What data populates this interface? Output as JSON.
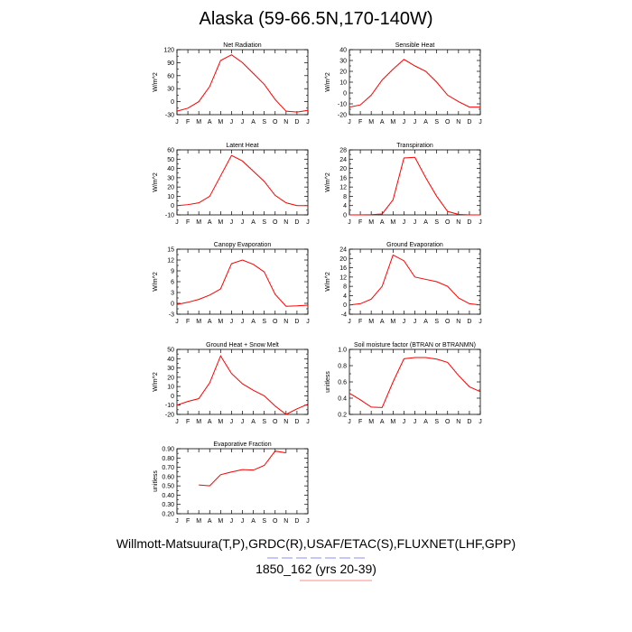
{
  "title": "Alaska (59-66.5N,170-140W)",
  "caption_line1": "Willmott-Matsuura(T,P),GRDC(R),USAF/ETAC(S),FLUXNET(LHF,GPP)",
  "caption_line2": "1850_162 (yrs 20-39)",
  "colors": {
    "line": "#ff0000",
    "axis": "#000000"
  },
  "chart_data": [
    {
      "type": "line",
      "title": "Net Radiation",
      "ylabel": "W/m^2",
      "categories": [
        "J",
        "F",
        "M",
        "A",
        "M",
        "J",
        "J",
        "A",
        "S",
        "O",
        "N",
        "D",
        "J"
      ],
      "ylim": [
        -30,
        120
      ],
      "yticks": [
        -30,
        0,
        30,
        60,
        90,
        120
      ],
      "ytick_labels": [
        "-30",
        "0",
        "30",
        "60",
        "90",
        "120"
      ],
      "yminor": [
        -15,
        15,
        45,
        75,
        105
      ],
      "values": [
        -22,
        -15,
        0,
        35,
        95,
        108,
        90,
        65,
        40,
        5,
        -22,
        -24,
        -20
      ]
    },
    {
      "type": "line",
      "title": "Sensible Heat",
      "ylabel": "W/m^2",
      "categories": [
        "J",
        "F",
        "M",
        "A",
        "M",
        "J",
        "J",
        "A",
        "S",
        "O",
        "N",
        "D",
        "J"
      ],
      "ylim": [
        -20,
        40
      ],
      "yticks": [
        -20,
        -10,
        0,
        10,
        20,
        30,
        40
      ],
      "ytick_labels": [
        "-20",
        "-10",
        "0",
        "10",
        "20",
        "30",
        "40"
      ],
      "yminor": [
        -15,
        -5,
        5,
        15,
        25,
        35
      ],
      "values": [
        -13,
        -11,
        -2,
        12,
        22,
        31,
        25,
        20,
        10,
        -2,
        -8,
        -13,
        -13
      ]
    },
    {
      "type": "line",
      "title": "Latent Heat",
      "ylabel": "W/m^2",
      "categories": [
        "J",
        "F",
        "M",
        "A",
        "M",
        "J",
        "J",
        "A",
        "S",
        "O",
        "N",
        "D",
        "J"
      ],
      "ylim": [
        -10,
        60
      ],
      "yticks": [
        -10,
        0,
        10,
        20,
        30,
        40,
        50,
        60
      ],
      "ytick_labels": [
        "-10",
        "0",
        "10",
        "20",
        "30",
        "40",
        "50",
        "60"
      ],
      "yminor": [
        -5,
        5,
        15,
        25,
        35,
        45,
        55
      ],
      "values": [
        0,
        1,
        3,
        10,
        32,
        54,
        48,
        37,
        26,
        11,
        3,
        0,
        0
      ]
    },
    {
      "type": "line",
      "title": "Transpiration",
      "ylabel": "W/m^2",
      "categories": [
        "J",
        "F",
        "M",
        "A",
        "M",
        "J",
        "J",
        "A",
        "S",
        "O",
        "N",
        "D",
        "J"
      ],
      "ylim": [
        0,
        28
      ],
      "yticks": [
        0,
        4,
        8,
        12,
        16,
        20,
        24,
        28
      ],
      "ytick_labels": [
        "0",
        "4",
        "8",
        "12",
        "16",
        "20",
        "24",
        "28"
      ],
      "yminor": [
        2,
        6,
        10,
        14,
        18,
        22,
        26
      ],
      "values": [
        0,
        0,
        0.1,
        0.4,
        6.5,
        24.5,
        24.8,
        16,
        8,
        1.5,
        0.2,
        0,
        0
      ]
    },
    {
      "type": "line",
      "title": "Canopy Evaporation",
      "ylabel": "W/m^2",
      "categories": [
        "J",
        "F",
        "M",
        "A",
        "M",
        "J",
        "J",
        "A",
        "S",
        "O",
        "N",
        "D",
        "J"
      ],
      "ylim": [
        -3,
        15
      ],
      "yticks": [
        -3,
        0,
        3,
        6,
        9,
        12,
        15
      ],
      "ytick_labels": [
        "-3",
        "0",
        "3",
        "6",
        "9",
        "12",
        "15"
      ],
      "yminor": [
        -1.5,
        1.5,
        4.5,
        7.5,
        10.5,
        13.5
      ],
      "values": [
        -0.3,
        0.3,
        1.1,
        2.3,
        4,
        11,
        12,
        10.8,
        8.7,
        2.5,
        -0.8,
        -0.7,
        -0.5
      ]
    },
    {
      "type": "line",
      "title": "Ground Evaporation",
      "ylabel": "W/m^2",
      "categories": [
        "J",
        "F",
        "M",
        "A",
        "M",
        "J",
        "J",
        "A",
        "S",
        "O",
        "N",
        "D",
        "J"
      ],
      "ylim": [
        -4,
        24
      ],
      "yticks": [
        -4,
        0,
        4,
        8,
        12,
        16,
        20,
        24
      ],
      "ytick_labels": [
        "-4",
        "0",
        "4",
        "8",
        "12",
        "16",
        "20",
        "24"
      ],
      "yminor": [
        -2,
        2,
        6,
        10,
        14,
        18,
        22
      ],
      "values": [
        0,
        0.5,
        2.5,
        8,
        21.5,
        19,
        12,
        11,
        10,
        8,
        3,
        0.5,
        0
      ]
    },
    {
      "type": "line",
      "title": "Ground Heat + Snow Melt",
      "ylabel": "W/m^2",
      "categories": [
        "J",
        "F",
        "M",
        "A",
        "M",
        "J",
        "J",
        "A",
        "S",
        "O",
        "N",
        "D",
        "J"
      ],
      "ylim": [
        -20,
        50
      ],
      "yticks": [
        -20,
        -10,
        0,
        10,
        20,
        30,
        40,
        50
      ],
      "ytick_labels": [
        "-20",
        "-10",
        "0",
        "10",
        "20",
        "30",
        "40",
        "50"
      ],
      "yminor": [
        -15,
        -5,
        5,
        15,
        25,
        35,
        45
      ],
      "values": [
        -10,
        -6,
        -3,
        14,
        43,
        24,
        13,
        6,
        0,
        -11,
        -20,
        -14,
        -9
      ]
    },
    {
      "type": "line",
      "title": "Soil moisture factor (BTRAN or BTRANMN)",
      "ylabel": "unitless",
      "categories": [
        "J",
        "F",
        "M",
        "A",
        "M",
        "J",
        "J",
        "A",
        "S",
        "O",
        "N",
        "D",
        "J"
      ],
      "ylim": [
        0.2,
        1.0
      ],
      "yticks": [
        0.2,
        0.4,
        0.6,
        0.8,
        1.0
      ],
      "ytick_labels": [
        "0.2",
        "0.4",
        "0.6",
        "0.8",
        "1.0"
      ],
      "yminor": [
        0.3,
        0.5,
        0.7,
        0.9
      ],
      "values": [
        0.46,
        0.38,
        0.29,
        0.285,
        0.6,
        0.885,
        0.9,
        0.9,
        0.88,
        0.84,
        0.68,
        0.54,
        0.48
      ]
    },
    {
      "type": "line",
      "title": "Evaporative Fraction",
      "ylabel": "unitless",
      "categories": [
        "J",
        "F",
        "M",
        "A",
        "M",
        "J",
        "J",
        "A",
        "S",
        "O",
        "N",
        "D",
        "J"
      ],
      "ylim": [
        0.2,
        0.9
      ],
      "yticks": [
        0.2,
        0.3,
        0.4,
        0.5,
        0.6,
        0.7,
        0.8,
        0.9
      ],
      "ytick_labels": [
        "0.20",
        "0.30",
        "0.40",
        "0.50",
        "0.60",
        "0.70",
        "0.80",
        "0.90"
      ],
      "yminor": [
        0.25,
        0.35,
        0.45,
        0.55,
        0.65,
        0.75,
        0.85
      ],
      "values": [
        null,
        null,
        0.51,
        0.5,
        0.62,
        0.65,
        0.675,
        0.67,
        0.72,
        0.875,
        0.855,
        null,
        null
      ]
    }
  ]
}
